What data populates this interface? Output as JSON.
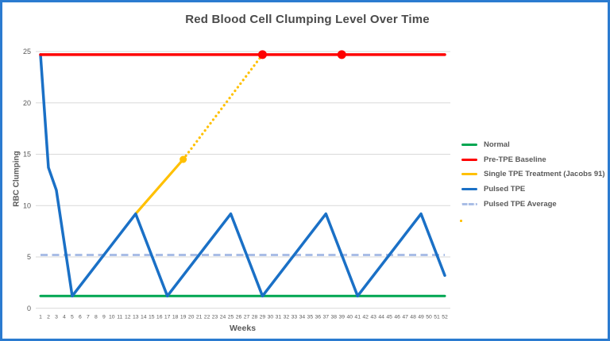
{
  "page": {
    "border_color": "#2b7bd0",
    "background_color": "#ffffff"
  },
  "chart_data": {
    "type": "line",
    "title": "Red Blood Cell Clumping Level Over Time",
    "xlabel": "Weeks",
    "ylabel": "RBC Clumping",
    "x_range": [
      1,
      52
    ],
    "ylim": [
      0,
      25
    ],
    "y_ticks": [
      0,
      5,
      10,
      15,
      20,
      25
    ],
    "x_ticks": [
      1,
      2,
      3,
      4,
      5,
      6,
      7,
      8,
      9,
      10,
      11,
      12,
      13,
      14,
      15,
      16,
      17,
      18,
      19,
      20,
      21,
      22,
      23,
      24,
      25,
      26,
      27,
      28,
      29,
      30,
      31,
      32,
      33,
      34,
      35,
      36,
      37,
      38,
      39,
      40,
      41,
      42,
      43,
      44,
      45,
      46,
      47,
      48,
      49,
      50,
      51,
      52
    ],
    "grid": "horizontal",
    "gridline_color": "#d9d9d9",
    "legend_position": "right",
    "series": [
      {
        "name": "Normal",
        "color": "#00a651",
        "width": 3,
        "dash": "none",
        "points": [
          [
            1,
            1.2
          ],
          [
            52,
            1.2
          ]
        ]
      },
      {
        "name": "Pre-TPE Baseline",
        "color": "#fe0000",
        "width": 3.5,
        "dash": "none",
        "points": [
          [
            1,
            24.7
          ],
          [
            52,
            24.7
          ]
        ],
        "markers": [
          [
            29,
            24.7
          ],
          [
            39,
            24.7
          ]
        ],
        "marker_r": 5.5
      },
      {
        "name": "Single TPE Treatment (Jacobs 91)",
        "color": "#ffc000",
        "width": 3.2,
        "dash": "none",
        "segments": [
          {
            "dash": "none",
            "points": [
              [
                13,
                9.2
              ],
              [
                19,
                14.5
              ]
            ]
          },
          {
            "dash": "dotted",
            "points": [
              [
                19,
                14.5
              ],
              [
                29,
                24.7
              ]
            ]
          }
        ],
        "markers": [
          [
            19,
            14.5
          ]
        ],
        "marker_r": 4.5
      },
      {
        "name": "Pulsed TPE",
        "color": "#1a70c6",
        "width": 3.5,
        "dash": "none",
        "points": [
          [
            1,
            24.7
          ],
          [
            2,
            13.7
          ],
          [
            3,
            11.5
          ],
          [
            5,
            1.2
          ],
          [
            13,
            9.2
          ],
          [
            17,
            1.2
          ],
          [
            25,
            9.2
          ],
          [
            29,
            1.2
          ],
          [
            37,
            9.2
          ],
          [
            41,
            1.2
          ],
          [
            49,
            9.2
          ],
          [
            52,
            3.2
          ]
        ]
      },
      {
        "name": "Pulsed TPE Average",
        "color": "#a9bde6",
        "width": 3,
        "dash": "dashed",
        "points": [
          [
            1,
            5.2
          ],
          [
            52,
            5.2
          ]
        ]
      }
    ],
    "draw_order": [
      0,
      4,
      2,
      3,
      1
    ],
    "stray_marker_color": "#ffc000"
  }
}
